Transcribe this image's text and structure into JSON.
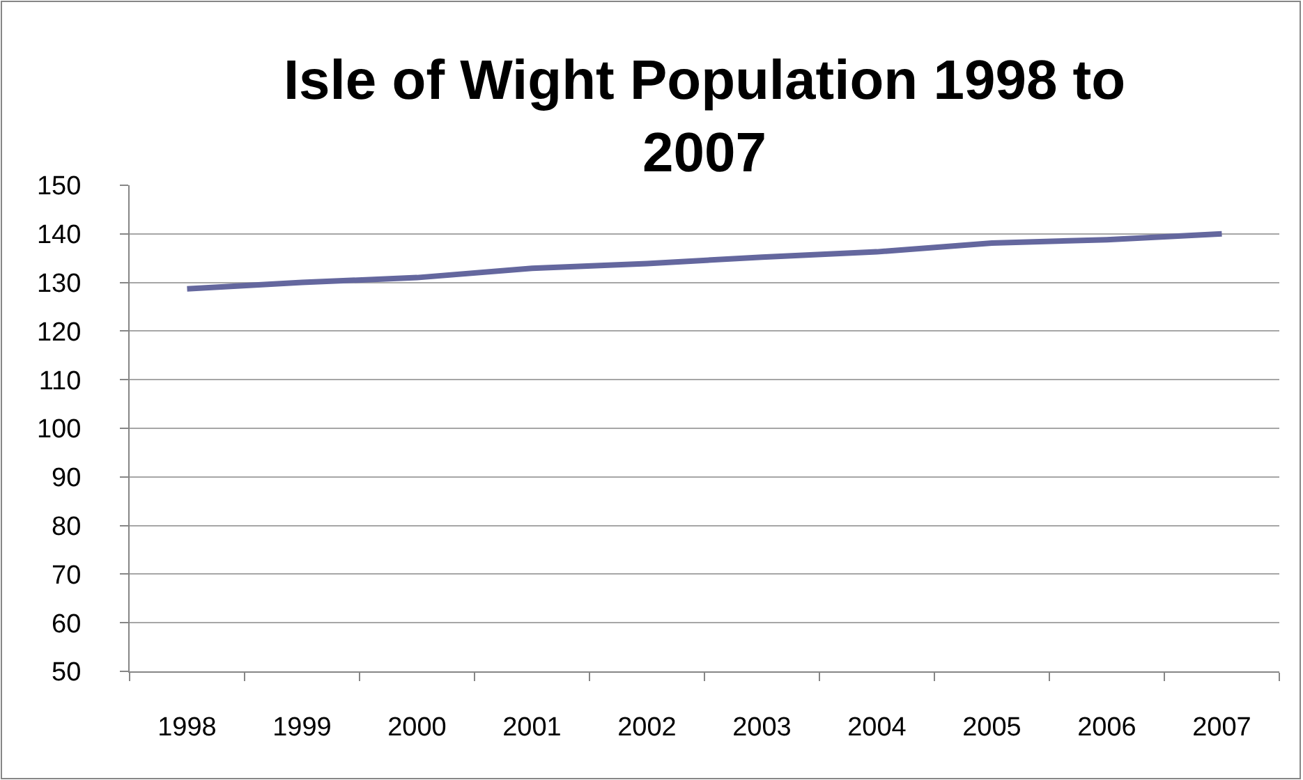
{
  "chart_data": {
    "type": "line",
    "title": "Isle of Wight Population 1998 to 2007",
    "categories": [
      "1998",
      "1999",
      "2000",
      "2001",
      "2002",
      "2003",
      "2004",
      "2005",
      "2006",
      "2007"
    ],
    "series": [
      {
        "color": "#64679e",
        "values": [
          128.7,
          130.0,
          131.0,
          132.9,
          133.9,
          135.2,
          136.3,
          138.1,
          138.8,
          140.0
        ]
      }
    ],
    "ylim": [
      50,
      150
    ],
    "yticks": [
      50,
      60,
      70,
      80,
      90,
      100,
      110,
      120,
      130,
      140,
      150
    ],
    "grid": "y",
    "marker": "none",
    "line_style": "solid"
  }
}
